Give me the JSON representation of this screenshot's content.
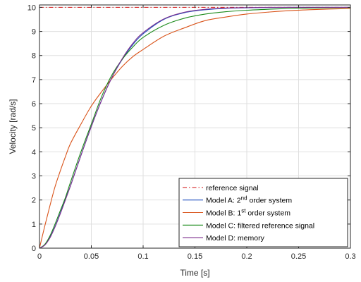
{
  "chart_data": {
    "type": "line",
    "title": "",
    "xlabel": "Time [s]",
    "ylabel": "Velocity [rad/s]",
    "xlim": [
      0,
      0.3
    ],
    "ylim": [
      0,
      10.1
    ],
    "xticks": [
      0,
      0.05,
      0.1,
      0.15,
      0.2,
      0.25,
      0.3
    ],
    "xtick_labels": [
      "0",
      "0.05",
      "0.1",
      "0.15",
      "0.2",
      "0.25",
      "0.3"
    ],
    "yticks": [
      0,
      1,
      2,
      3,
      4,
      5,
      6,
      7,
      8,
      9,
      10
    ],
    "ytick_labels": [
      "0",
      "1",
      "2",
      "3",
      "4",
      "5",
      "6",
      "7",
      "8",
      "9",
      "10"
    ],
    "grid": true,
    "legend_position": "bottom-right",
    "series": [
      {
        "name": "reference signal",
        "legend_main": "reference signal",
        "legend_sup": "",
        "legend_tail": "",
        "color": "#d62728",
        "dash": "dashdot",
        "x": [
          0,
          0.3
        ],
        "y": [
          10,
          10
        ]
      },
      {
        "name": "Model A: 2nd order system",
        "legend_main": "Model A: 2",
        "legend_sup": "nd",
        "legend_tail": " order system",
        "color": "#1f4fbf",
        "dash": "solid",
        "x": [
          0,
          0.005,
          0.01,
          0.015,
          0.02,
          0.025,
          0.03,
          0.04,
          0.05,
          0.06,
          0.07,
          0.08,
          0.09,
          0.1,
          0.12,
          0.14,
          0.16,
          0.18,
          0.2,
          0.22,
          0.24,
          0.26,
          0.28,
          0.3
        ],
        "y": [
          0,
          0.14,
          0.45,
          0.9,
          1.45,
          2.05,
          2.6,
          3.85,
          5.05,
          6.15,
          7.1,
          7.85,
          8.45,
          8.9,
          9.5,
          9.78,
          9.9,
          9.96,
          9.98,
          9.99,
          10.0,
          10.0,
          10.0,
          10.0
        ]
      },
      {
        "name": "Model B: 1st order system",
        "legend_main": "Model B: 1",
        "legend_sup": "st",
        "legend_tail": " order system",
        "color": "#d95319",
        "dash": "solid",
        "x": [
          0,
          0.005,
          0.01,
          0.015,
          0.02,
          0.025,
          0.03,
          0.04,
          0.05,
          0.06,
          0.07,
          0.08,
          0.09,
          0.1,
          0.12,
          0.14,
          0.16,
          0.18,
          0.2,
          0.22,
          0.24,
          0.26,
          0.28,
          0.3
        ],
        "y": [
          0,
          0.9,
          1.75,
          2.55,
          3.2,
          3.8,
          4.35,
          5.15,
          5.9,
          6.5,
          7.05,
          7.55,
          7.95,
          8.25,
          8.8,
          9.15,
          9.45,
          9.6,
          9.72,
          9.8,
          9.86,
          9.9,
          9.93,
          9.95
        ]
      },
      {
        "name": "Model C: filtered reference signal",
        "legend_main": "Model C: filtered reference signal",
        "legend_sup": "",
        "legend_tail": "",
        "color": "#1a8a1a",
        "dash": "solid",
        "x": [
          0,
          0.005,
          0.01,
          0.015,
          0.02,
          0.025,
          0.03,
          0.04,
          0.05,
          0.06,
          0.07,
          0.08,
          0.09,
          0.1,
          0.12,
          0.14,
          0.16,
          0.18,
          0.2,
          0.22,
          0.24,
          0.26,
          0.28,
          0.3
        ],
        "y": [
          0,
          0.15,
          0.5,
          1.0,
          1.55,
          2.1,
          2.75,
          4.0,
          5.15,
          6.3,
          7.2,
          7.85,
          8.35,
          8.75,
          9.25,
          9.55,
          9.72,
          9.82,
          9.88,
          9.92,
          9.95,
          9.97,
          9.98,
          9.99
        ]
      },
      {
        "name": "Model D: memory",
        "legend_main": "Model D: memory",
        "legend_sup": "",
        "legend_tail": "",
        "color": "#7e2f8e",
        "dash": "solid",
        "x": [
          0,
          0.005,
          0.01,
          0.015,
          0.02,
          0.025,
          0.03,
          0.04,
          0.05,
          0.06,
          0.07,
          0.08,
          0.09,
          0.1,
          0.12,
          0.14,
          0.16,
          0.18,
          0.2,
          0.22,
          0.24,
          0.26,
          0.28,
          0.3
        ],
        "y": [
          0,
          0.12,
          0.42,
          0.88,
          1.42,
          2.0,
          2.6,
          3.85,
          5.05,
          6.15,
          7.1,
          7.88,
          8.5,
          8.95,
          9.52,
          9.8,
          9.92,
          9.97,
          9.99,
          10.0,
          10.0,
          10.0,
          10.0,
          10.0
        ]
      }
    ]
  }
}
